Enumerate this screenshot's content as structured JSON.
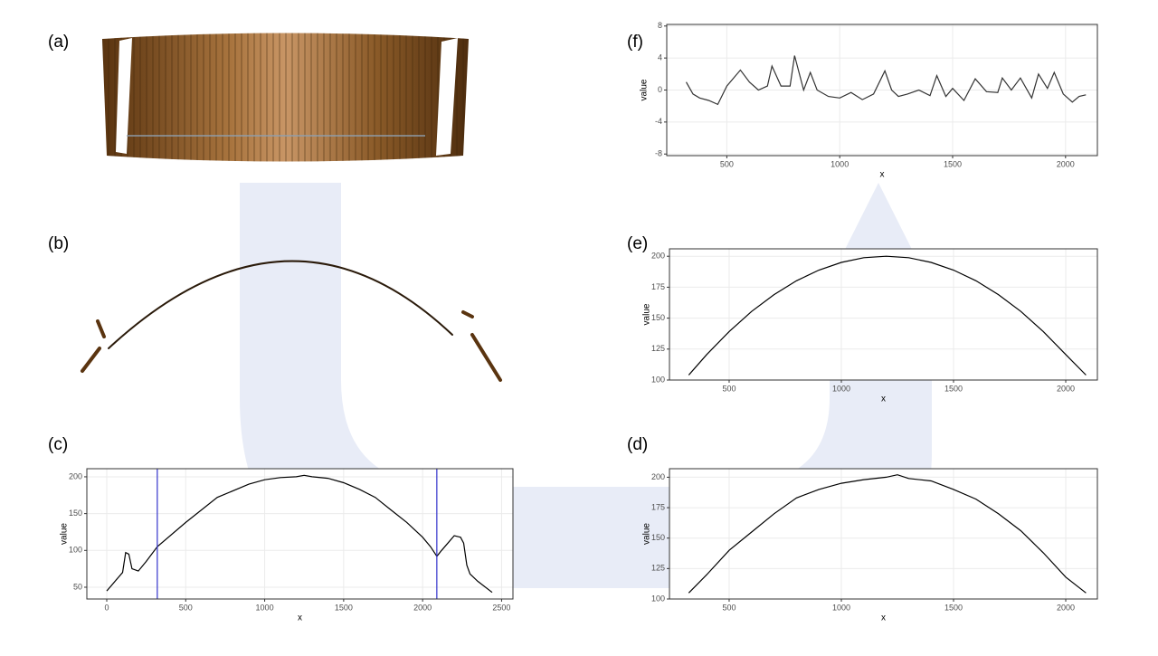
{
  "images": [
    {
      "label": "(a)"
    },
    {
      "label": "(b)"
    }
  ],
  "chart_data": [
    {
      "type": "line",
      "label": "(c)",
      "xlabel": "x",
      "ylabel": "value",
      "x": [
        0,
        100,
        120,
        140,
        160,
        200,
        250,
        320,
        500,
        700,
        900,
        1000,
        1100,
        1200,
        1250,
        1300,
        1400,
        1500,
        1600,
        1700,
        1800,
        1900,
        2000,
        2050,
        2090,
        2120,
        2160,
        2200,
        2240,
        2260,
        2280,
        2300,
        2350,
        2440
      ],
      "series": [
        {
          "color": "#000000",
          "values": [
            45,
            70,
            97,
            95,
            75,
            72,
            85,
            105,
            138,
            172,
            190,
            196,
            199,
            200,
            202,
            200,
            198,
            192,
            183,
            172,
            155,
            138,
            118,
            105,
            92,
            100,
            110,
            120,
            118,
            110,
            80,
            68,
            58,
            43
          ]
        }
      ],
      "vlines": {
        "values": [
          320,
          2090
        ],
        "color": "#3333cc"
      },
      "xlim": [
        -126,
        2572
      ],
      "ylim": [
        34,
        211
      ],
      "xticks": [
        0,
        500,
        1000,
        1500,
        2000,
        2500
      ],
      "yticks": [
        50,
        100,
        150,
        200
      ],
      "grid": true
    },
    {
      "type": "line",
      "label": "(d)",
      "xlabel": "x",
      "ylabel": "value",
      "x": [
        320,
        400,
        500,
        600,
        700,
        800,
        900,
        1000,
        1100,
        1200,
        1250,
        1300,
        1400,
        1500,
        1600,
        1700,
        1800,
        1900,
        2000,
        2090
      ],
      "series": [
        {
          "color": "#000000",
          "values": [
            105,
            120,
            140,
            155,
            170,
            183,
            190,
            195,
            198,
            200,
            202,
            199,
            197,
            190,
            182,
            170,
            156,
            138,
            118,
            105
          ]
        }
      ],
      "xlim": [
        234,
        2141
      ],
      "ylim": [
        100,
        207
      ],
      "xticks": [
        500,
        1000,
        1500,
        2000
      ],
      "yticks": [
        100,
        125,
        150,
        175,
        200
      ],
      "grid": true
    },
    {
      "type": "line",
      "label": "(e)",
      "xlabel": "x",
      "ylabel": "value",
      "x": [
        320,
        400,
        500,
        600,
        700,
        800,
        900,
        1000,
        1100,
        1200,
        1300,
        1400,
        1500,
        1600,
        1700,
        1800,
        1900,
        2000,
        2090
      ],
      "series": [
        {
          "color": "#000000",
          "values": [
            104,
            120.6,
            139.2,
            155.4,
            169,
            180.2,
            188.8,
            195,
            198.8,
            200,
            198.8,
            195,
            188.8,
            180.2,
            169,
            155.4,
            139.2,
            120.6,
            104
          ]
        }
      ],
      "xlim": [
        234,
        2141
      ],
      "ylim": [
        100,
        206
      ],
      "xticks": [
        500,
        1000,
        1500,
        2000
      ],
      "yticks": [
        100,
        125,
        150,
        175,
        200
      ],
      "grid": true
    },
    {
      "type": "line",
      "label": "(f)",
      "xlabel": "x",
      "ylabel": "value",
      "x": [
        320,
        350,
        380,
        420,
        460,
        500,
        530,
        560,
        600,
        640,
        680,
        700,
        740,
        780,
        800,
        840,
        870,
        900,
        950,
        1000,
        1050,
        1100,
        1150,
        1200,
        1230,
        1260,
        1300,
        1350,
        1400,
        1430,
        1470,
        1500,
        1550,
        1600,
        1650,
        1700,
        1720,
        1760,
        1800,
        1850,
        1880,
        1920,
        1950,
        1990,
        2030,
        2060,
        2090
      ],
      "series": [
        {
          "color": "#333333",
          "values": [
            1,
            -0.5,
            -1,
            -1.3,
            -1.8,
            0.5,
            1.5,
            2.5,
            1,
            0,
            0.5,
            3,
            0.5,
            0.5,
            4.3,
            0,
            2.2,
            0,
            -0.8,
            -1,
            -0.3,
            -1.2,
            -0.5,
            2.4,
            0,
            -0.8,
            -0.5,
            0,
            -0.7,
            1.8,
            -0.8,
            0.2,
            -1.3,
            1.4,
            -0.2,
            -0.3,
            1.5,
            0,
            1.5,
            -1,
            2,
            0.2,
            2.2,
            -0.5,
            -1.5,
            -0.8,
            -0.6
          ]
        }
      ],
      "xlim": [
        234,
        2141
      ],
      "ylim": [
        -8.2,
        8.2
      ],
      "xticks": [
        500,
        1000,
        1500,
        2000
      ],
      "yticks": [
        -8,
        -4,
        0,
        4,
        8
      ],
      "grid": true
    }
  ]
}
